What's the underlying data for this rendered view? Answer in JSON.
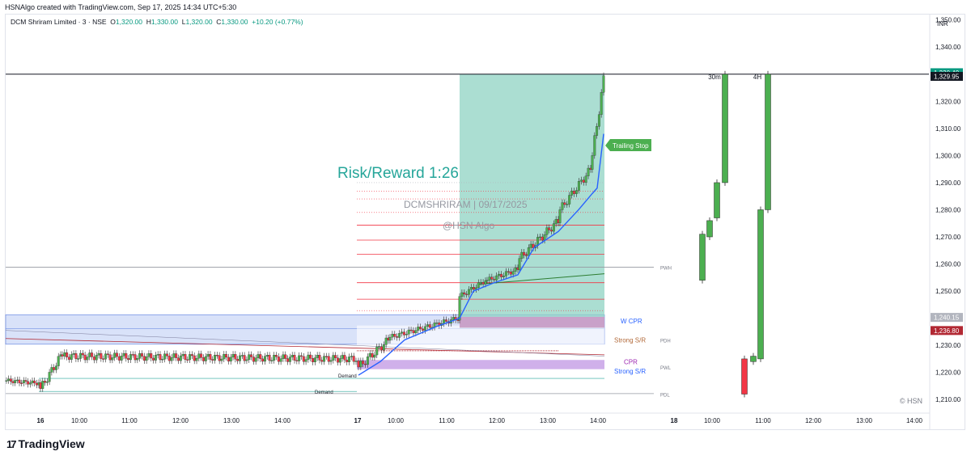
{
  "header": {
    "created_line": "HSNAlgo created with TradingView.com, Sep 17, 2025 14:34 UTC+5:30"
  },
  "legend": {
    "symbol": "DCM Shriram Limited · 3 · NSE",
    "o_label": "O",
    "o_value": "1,320.00",
    "h_label": "H",
    "h_value": "1,330.00",
    "l_label": "L",
    "l_value": "1,320.00",
    "c_label": "C",
    "c_value": "1,330.00",
    "change": "+10.20 (+0.77%)"
  },
  "brand": {
    "name": "TradingView"
  },
  "colors": {
    "up": "#089981",
    "up_body": "#4caf50",
    "down": "#f23645",
    "line_blue": "#2962ff",
    "teal_zone": "#8fd3c3",
    "blue_zone": "#c9d6f7",
    "purple_zone": "#c8a2e6",
    "cpr_pink": "#d58fc6"
  },
  "chart_data": {
    "type": "candlestick",
    "currency": "INR",
    "y_axis": {
      "range": [
        1205,
        1352
      ],
      "ticks": [
        "1,350.00",
        "1,340.00",
        "1,320.00",
        "1,310.00",
        "1,300.00",
        "1,290.00",
        "1,280.00",
        "1,270.00",
        "1,260.00",
        "1,250.00",
        "1,230.00",
        "1,220.00",
        "1,210.00"
      ],
      "tick_values": [
        1350,
        1340,
        1320,
        1310,
        1300,
        1290,
        1280,
        1270,
        1260,
        1250,
        1230,
        1220,
        1210
      ]
    },
    "x_axis": {
      "ticks": [
        "16",
        "10:00",
        "11:00",
        "12:00",
        "13:00",
        "14:00",
        "17",
        "10:00",
        "11:00",
        "12:00",
        "13:00",
        "14:00",
        "18",
        "10:00",
        "11:00",
        "12:00",
        "13:00",
        "14:00"
      ]
    },
    "price_labels": [
      {
        "text": "1,330.40",
        "value": 1330.4,
        "color": "#089981"
      },
      {
        "text": "1,329.95",
        "value": 1329.95,
        "color": "#131722"
      },
      {
        "text": "1,240.15",
        "value": 1240.15,
        "color": "#b2b5be"
      },
      {
        "text": "1,236.80",
        "value": 1236.8,
        "color": "#b22833"
      }
    ],
    "annotations": {
      "risk_reward": "Risk/Reward 1:26",
      "watermark_1": "DCMSHRIRAM | 09/17/2025",
      "watermark_2": "@HSN Algo",
      "trailing_stop": "Trailing Stop",
      "copyright": "© HSN",
      "tf_30m": "30m",
      "tf_4h": "4H"
    },
    "levels": [
      {
        "text": "PWH",
        "value": 1258.8
      },
      {
        "text": "PDH",
        "value": 1232.0
      },
      {
        "text": "PWL",
        "value": 1222.0
      },
      {
        "text": "PDL",
        "value": 1212.0
      },
      {
        "text": "W CPR",
        "value": 1239.0
      },
      {
        "text": "Strong S/R",
        "value": 1232.0
      },
      {
        "text": "CPR",
        "value": 1224.0
      },
      {
        "text": "Strong S/R",
        "value": 1220.5
      },
      {
        "text": "Demand",
        "value": 1219.0
      },
      {
        "text": "Demand",
        "value": 1213.0
      }
    ]
  }
}
